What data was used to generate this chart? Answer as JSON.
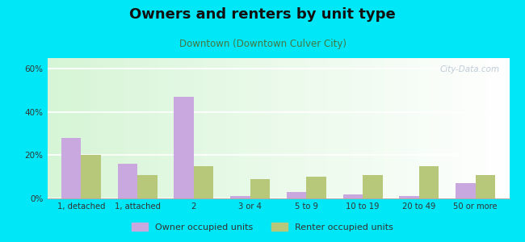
{
  "title": "Owners and renters by unit type",
  "subtitle": "Downtown (Downtown Culver City)",
  "categories": [
    "1, detached",
    "1, attached",
    "2",
    "3 or 4",
    "5 to 9",
    "10 to 19",
    "20 to 49",
    "50 or more"
  ],
  "owner_values": [
    28,
    16,
    47,
    1,
    3,
    2,
    1,
    7
  ],
  "renter_values": [
    20,
    11,
    15,
    9,
    10,
    11,
    15,
    11
  ],
  "owner_color": "#c9a8e0",
  "renter_color": "#b8c87a",
  "outer_bg": "#00e8f8",
  "ylim": [
    0,
    65
  ],
  "yticks": [
    0,
    20,
    40,
    60
  ],
  "ytick_labels": [
    "0%",
    "20%",
    "40%",
    "60%"
  ],
  "owner_label": "Owner occupied units",
  "renter_label": "Renter occupied units",
  "bar_width": 0.35,
  "title_fontsize": 13,
  "subtitle_fontsize": 8.5,
  "watermark_text": "City-Data.com"
}
